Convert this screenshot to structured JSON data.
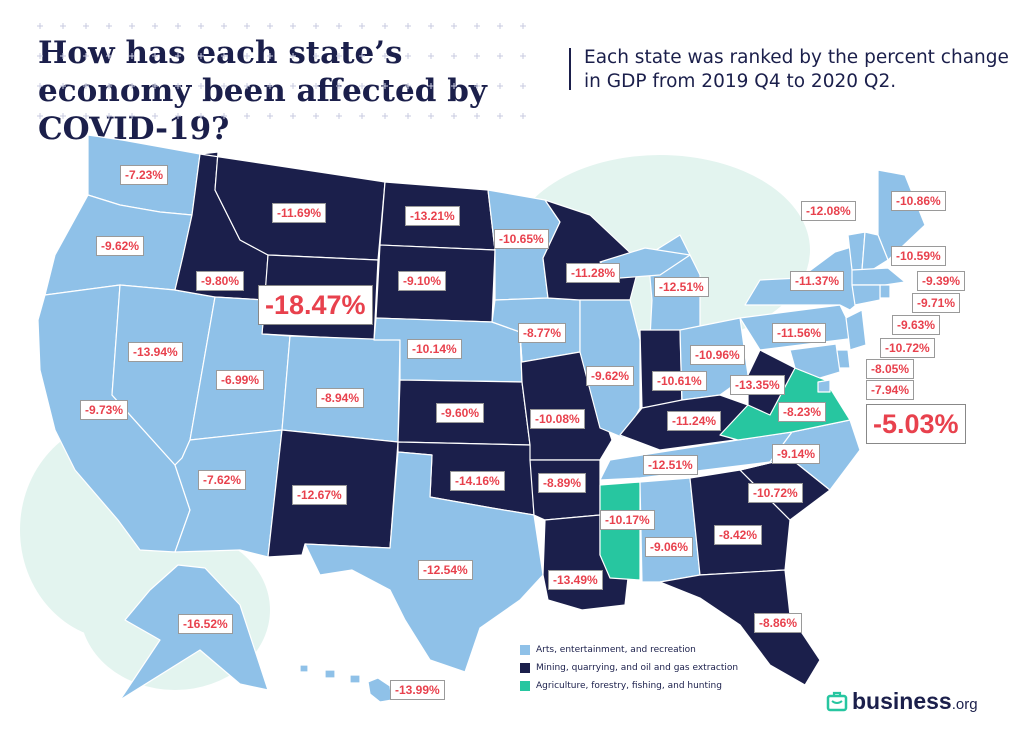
{
  "header": {
    "title": "How has each state’s economy been affected by COVID-19?",
    "subtitle": "Each state was ranked by the percent change in GDP from 2019 Q4 to 2020 Q2."
  },
  "colors": {
    "arts": "#8fc1e8",
    "mining": "#1b1f4b",
    "agriculture": "#27c6a0",
    "label_text": "#e8414d",
    "background_blob": "#e3f4ef",
    "title": "#1b1f4b"
  },
  "map": {
    "states": [
      {
        "id": "washington",
        "value": "-7.23%",
        "category": "arts"
      },
      {
        "id": "oregon",
        "value": "-9.62%",
        "category": "arts"
      },
      {
        "id": "california",
        "value": "-9.73%",
        "category": "arts"
      },
      {
        "id": "nevada",
        "value": "-13.94%",
        "category": "arts"
      },
      {
        "id": "idaho",
        "value": "-9.80%",
        "category": "mining"
      },
      {
        "id": "montana",
        "value": "-11.69%",
        "category": "mining"
      },
      {
        "id": "wyoming",
        "value": "-18.47%",
        "category": "mining",
        "emphasis": "largest decline"
      },
      {
        "id": "utah",
        "value": "-6.99%",
        "category": "arts"
      },
      {
        "id": "arizona",
        "value": "-7.62%",
        "category": "arts"
      },
      {
        "id": "colorado",
        "value": "-8.94%",
        "category": "arts"
      },
      {
        "id": "new-mexico",
        "value": "-12.67%",
        "category": "mining"
      },
      {
        "id": "north-dakota",
        "value": "-13.21%",
        "category": "mining"
      },
      {
        "id": "south-dakota",
        "value": "-9.10%",
        "category": "mining"
      },
      {
        "id": "nebraska",
        "value": "-10.14%",
        "category": "arts"
      },
      {
        "id": "kansas",
        "value": "-9.60%",
        "category": "mining"
      },
      {
        "id": "oklahoma",
        "value": "-14.16%",
        "category": "mining"
      },
      {
        "id": "texas",
        "value": "-12.54%",
        "category": "arts"
      },
      {
        "id": "minnesota",
        "value": "-10.65%",
        "category": "arts"
      },
      {
        "id": "iowa",
        "value": "-8.77%",
        "category": "arts"
      },
      {
        "id": "missouri",
        "value": "-10.08%",
        "category": "mining"
      },
      {
        "id": "arkansas",
        "value": "-8.89%",
        "category": "mining"
      },
      {
        "id": "louisiana",
        "value": "-13.49%",
        "category": "mining"
      },
      {
        "id": "wisconsin",
        "value": "-11.28%",
        "category": "mining"
      },
      {
        "id": "illinois",
        "value": "-9.62%",
        "category": "arts"
      },
      {
        "id": "michigan",
        "value": "-12.51%",
        "category": "arts"
      },
      {
        "id": "indiana",
        "value": "-10.61%",
        "category": "mining"
      },
      {
        "id": "ohio",
        "value": "-10.96%",
        "category": "arts"
      },
      {
        "id": "kentucky",
        "value": "-11.24%",
        "category": "mining"
      },
      {
        "id": "tennessee",
        "value": "-12.51%",
        "category": "arts"
      },
      {
        "id": "mississippi",
        "value": "-10.17%",
        "category": "agriculture"
      },
      {
        "id": "alabama",
        "value": "-9.06%",
        "category": "arts"
      },
      {
        "id": "georgia",
        "value": "-8.42%",
        "category": "mining"
      },
      {
        "id": "florida",
        "value": "-8.86%",
        "category": "mining"
      },
      {
        "id": "south-carolina",
        "value": "-10.72%",
        "category": "mining"
      },
      {
        "id": "north-carolina",
        "value": "-9.14%",
        "category": "arts"
      },
      {
        "id": "virginia",
        "value": "-5.03%",
        "category": "agriculture",
        "emphasis": "smallest decline"
      },
      {
        "id": "west-virginia",
        "value": "-13.35%",
        "category": "mining"
      },
      {
        "id": "pennsylvania",
        "value": "-11.56%",
        "category": "arts"
      },
      {
        "id": "new-york",
        "value": "-11.37%",
        "category": "arts"
      },
      {
        "id": "vermont",
        "value": "-12.08%",
        "category": "arts"
      },
      {
        "id": "maine",
        "value": "-10.86%",
        "category": "arts"
      },
      {
        "id": "new-hampshire",
        "value": "-10.59%",
        "category": "arts"
      },
      {
        "id": "massachusetts",
        "value": "-9.39%",
        "category": "arts"
      },
      {
        "id": "rhode-island",
        "value": "-9.71%",
        "category": "arts"
      },
      {
        "id": "connecticut",
        "value": "-9.63%",
        "category": "arts"
      },
      {
        "id": "new-jersey",
        "value": "-10.72%",
        "category": "arts"
      },
      {
        "id": "delaware",
        "value": "-8.05%",
        "category": "arts"
      },
      {
        "id": "maryland",
        "value": "-8.23%",
        "category": "arts"
      },
      {
        "id": "dc",
        "value": "-7.94%",
        "category": "arts"
      },
      {
        "id": "alaska",
        "value": "-16.52%",
        "category": "arts"
      },
      {
        "id": "hawaii",
        "value": "-13.99%",
        "category": "arts"
      }
    ]
  },
  "legend": {
    "items": [
      {
        "key": "arts",
        "label": "Arts, entertainment, and recreation"
      },
      {
        "key": "mining",
        "label": "Mining, quarrying, and oil and gas extraction"
      },
      {
        "key": "agriculture",
        "label": "Agriculture, forestry, fishing, and hunting"
      }
    ]
  },
  "brand": {
    "name": "business",
    "tld": ".org",
    "icon": "briefcase-icon"
  }
}
